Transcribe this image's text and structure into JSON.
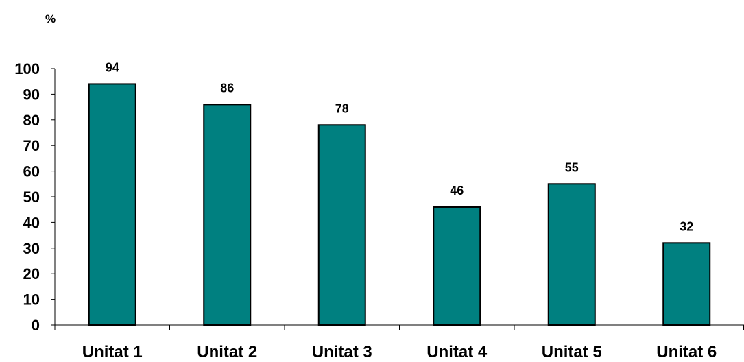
{
  "chart_data": {
    "type": "bar",
    "ylabel": "%",
    "categories": [
      "Unitat 1",
      "Unitat 2",
      "Unitat 3",
      "Unitat 4",
      "Unitat 5",
      "Unitat 6"
    ],
    "values": [
      94,
      86,
      78,
      46,
      55,
      32
    ],
    "data_labels": [
      "94",
      "86",
      "78",
      "46",
      "55",
      "32"
    ],
    "ylim": [
      0,
      100
    ],
    "yticks": [
      "0",
      "10",
      "20",
      "30",
      "40",
      "50",
      "60",
      "70",
      "80",
      "90",
      "100"
    ],
    "grid": false,
    "legend": "none",
    "colors": {
      "bar_fill": "#008080",
      "bar_stroke": "#000000",
      "axis": "#000000"
    }
  }
}
